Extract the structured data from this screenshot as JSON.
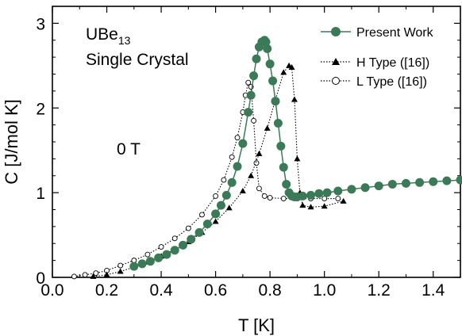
{
  "chart_data": {
    "type": "scatter",
    "xlabel": "T [K]",
    "ylabel": "C [J/mol K]",
    "xlim": [
      0.0,
      1.5
    ],
    "ylim": [
      0,
      3.2
    ],
    "x_ticks": [
      "0.0",
      "0.2",
      "0.4",
      "0.6",
      "0.8",
      "1.0",
      "1.2",
      "1.4"
    ],
    "y_ticks": [
      "0",
      "1",
      "2",
      "3"
    ],
    "grid": false,
    "legend_position": "top-right",
    "annotations": {
      "compound_main": "UBe",
      "compound_sub": "13",
      "sample": "Single Crystal",
      "field": "0 T"
    },
    "colors": {
      "present": "#3a7a57",
      "reference": "#000000"
    },
    "series": [
      {
        "name": "Present Work",
        "style": "line-filled-circles",
        "x": [
          0.3,
          0.33,
          0.36,
          0.39,
          0.42,
          0.45,
          0.48,
          0.51,
          0.54,
          0.57,
          0.6,
          0.62,
          0.64,
          0.66,
          0.68,
          0.7,
          0.72,
          0.73,
          0.74,
          0.75,
          0.76,
          0.77,
          0.78,
          0.785,
          0.79,
          0.8,
          0.81,
          0.82,
          0.83,
          0.84,
          0.85,
          0.86,
          0.87,
          0.88,
          0.89,
          0.9,
          0.92,
          0.95,
          0.98,
          1.01,
          1.05,
          1.1,
          1.15,
          1.2,
          1.25,
          1.3,
          1.35,
          1.4,
          1.45,
          1.5
        ],
        "y": [
          0.13,
          0.16,
          0.19,
          0.23,
          0.27,
          0.32,
          0.38,
          0.45,
          0.53,
          0.63,
          0.75,
          0.85,
          0.97,
          1.12,
          1.31,
          1.58,
          1.95,
          2.15,
          2.38,
          2.58,
          2.72,
          2.78,
          2.8,
          2.78,
          2.7,
          2.52,
          2.32,
          2.08,
          1.82,
          1.55,
          1.3,
          1.1,
          1.0,
          0.96,
          0.95,
          0.95,
          0.96,
          0.97,
          0.99,
          1.0,
          1.02,
          1.04,
          1.06,
          1.08,
          1.1,
          1.11,
          1.12,
          1.13,
          1.14,
          1.15
        ]
      },
      {
        "name": "H Type ([16])",
        "style": "dotted-line-filled-triangles",
        "x": [
          0.15,
          0.2,
          0.25,
          0.3,
          0.35,
          0.4,
          0.45,
          0.5,
          0.55,
          0.6,
          0.65,
          0.7,
          0.73,
          0.76,
          0.79,
          0.82,
          0.85,
          0.87,
          0.88,
          0.89,
          0.9,
          0.91,
          0.92,
          0.95,
          1.0,
          1.07
        ],
        "y": [
          0.01,
          0.03,
          0.07,
          0.12,
          0.18,
          0.25,
          0.33,
          0.42,
          0.53,
          0.66,
          0.82,
          1.02,
          1.2,
          1.46,
          1.76,
          2.1,
          2.42,
          2.5,
          2.48,
          2.1,
          1.4,
          1.0,
          0.85,
          0.83,
          0.84,
          0.9
        ]
      },
      {
        "name": "L Type ([16])",
        "style": "dotted-line-open-circles",
        "x": [
          0.08,
          0.12,
          0.16,
          0.2,
          0.25,
          0.3,
          0.35,
          0.4,
          0.45,
          0.5,
          0.55,
          0.6,
          0.63,
          0.66,
          0.68,
          0.7,
          0.71,
          0.72,
          0.73,
          0.74,
          0.75,
          0.76,
          0.78,
          0.8,
          0.85,
          0.9,
          0.95,
          1.0,
          1.05
        ],
        "y": [
          0.01,
          0.03,
          0.05,
          0.08,
          0.14,
          0.2,
          0.27,
          0.36,
          0.46,
          0.58,
          0.74,
          0.96,
          1.15,
          1.42,
          1.65,
          1.95,
          2.15,
          2.3,
          2.25,
          1.85,
          1.35,
          1.05,
          0.96,
          0.94,
          0.93,
          0.93,
          0.93,
          0.93,
          0.93
        ]
      }
    ]
  }
}
